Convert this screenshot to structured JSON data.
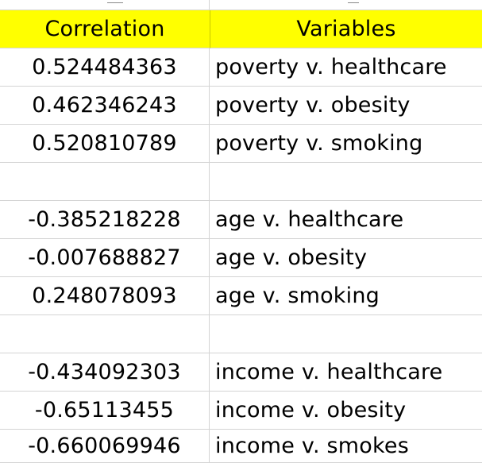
{
  "header": {
    "correlation_label": "Correlation",
    "variables_label": "Variables"
  },
  "rows": [
    {
      "correlation": "0.524484363",
      "variables": "poverty v. healthcare"
    },
    {
      "correlation": "0.462346243",
      "variables": "poverty v. obesity"
    },
    {
      "correlation": "0.520810789",
      "variables": "poverty v. smoking"
    },
    {
      "correlation": "",
      "variables": ""
    },
    {
      "correlation": "-0.385218228",
      "variables": "age v. healthcare"
    },
    {
      "correlation": "-0.007688827",
      "variables": "age v. obesity"
    },
    {
      "correlation": "0.248078093",
      "variables": "age v. smoking"
    },
    {
      "correlation": "",
      "variables": ""
    },
    {
      "correlation": "-0.434092303",
      "variables": "income v. healthcare"
    },
    {
      "correlation": "-0.65113455",
      "variables": "income v. obesity"
    },
    {
      "correlation": "-0.660069946",
      "variables": "income v. smokes"
    }
  ],
  "colors": {
    "header_fill": "#ffff00",
    "gridline": "#d4d4d4"
  }
}
